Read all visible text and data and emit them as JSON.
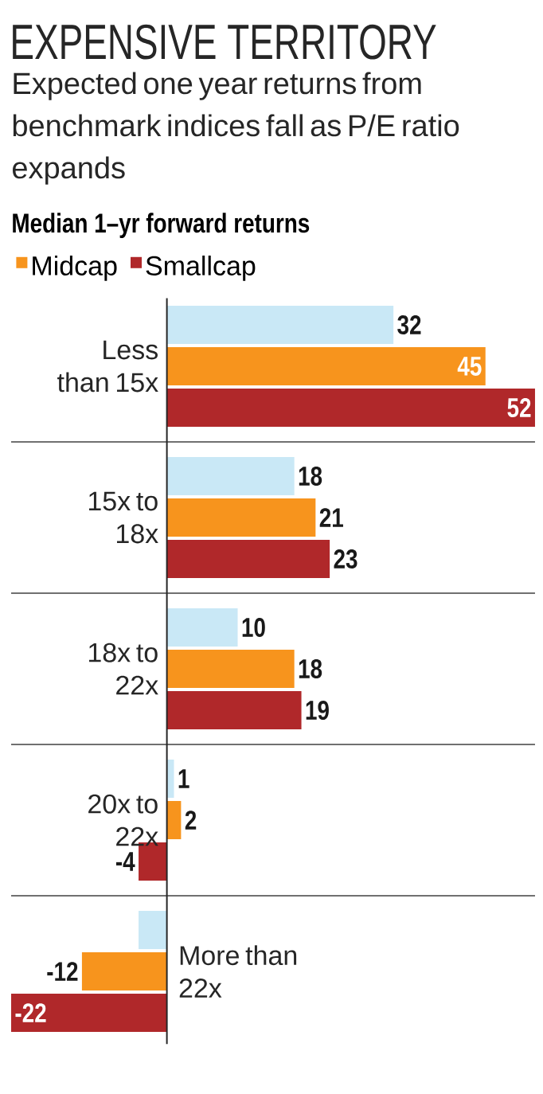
{
  "chart_data": {
    "type": "bar",
    "orientation": "horizontal",
    "title": "EXPENSIVE TERRITORY",
    "subtitle": "Expected one year returns from benchmark indices fall as P/E ratio expands",
    "xlabel": "Median 1–yr forward returns",
    "categories": [
      "Less than 15x",
      "15x to 18x",
      "18x to 22x",
      "20x to 22x",
      "More than 22x"
    ],
    "series": [
      {
        "color": "#c9e8f6",
        "values": [
          32,
          18,
          10,
          1,
          -4
        ],
        "value_labels": [
          "32",
          "18",
          "10",
          "1",
          null
        ]
      },
      {
        "name": "Midcap",
        "color": "#f7941d",
        "values": [
          45,
          21,
          18,
          2,
          -12
        ],
        "value_labels": [
          "45",
          "21",
          "18",
          "2",
          "-12"
        ]
      },
      {
        "name": "Smallcap",
        "color": "#b0282a",
        "values": [
          52,
          23,
          19,
          -4,
          -22
        ],
        "value_labels": [
          "52",
          "23",
          "19",
          "-4",
          "-22"
        ]
      }
    ],
    "legend": "top"
  }
}
